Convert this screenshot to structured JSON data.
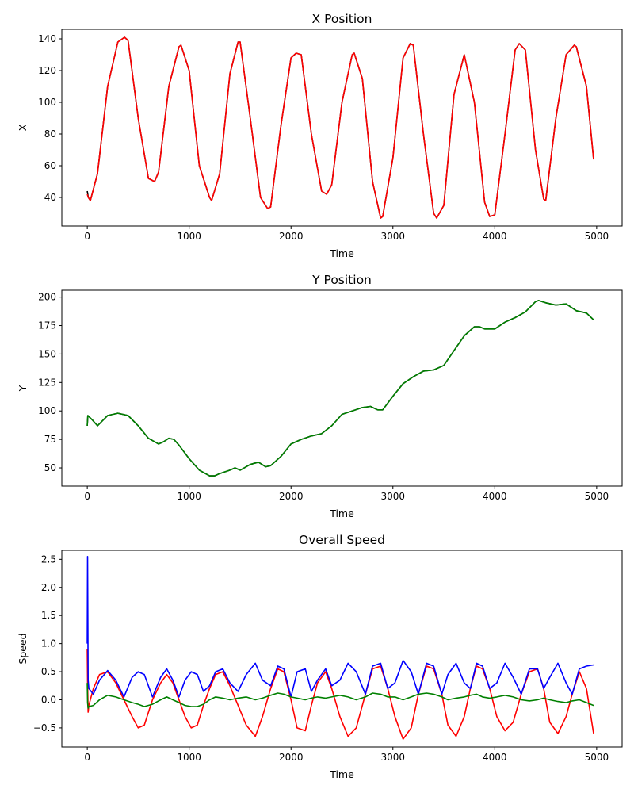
{
  "chart_data": [
    {
      "type": "line",
      "title": "X Position",
      "xlabel": "Time",
      "ylabel": "X",
      "xlim": [
        -250,
        5250
      ],
      "ylim": [
        22,
        146
      ],
      "xticks": [
        0,
        1000,
        2000,
        3000,
        4000,
        5000
      ],
      "yticks": [
        40,
        60,
        80,
        100,
        120,
        140
      ],
      "xtick_labels": [
        "0",
        "1000",
        "2000",
        "3000",
        "4000",
        "5000"
      ],
      "ytick_labels": [
        "40",
        "60",
        "80",
        "100",
        "120",
        "140"
      ],
      "grid": false,
      "series": [
        {
          "color": "#000000",
          "x": [
            0,
            10,
            30,
            100,
            200,
            300,
            365,
            400,
            500,
            600,
            660,
            700,
            800,
            900,
            920,
            1000,
            1100,
            1200,
            1220,
            1300,
            1400,
            1480,
            1500,
            1600,
            1700,
            1770,
            1800,
            1900,
            2000,
            2050,
            2100,
            2200,
            2300,
            2350,
            2400,
            2500,
            2600,
            2620,
            2700,
            2800,
            2880,
            2900,
            3000,
            3100,
            3170,
            3200,
            3300,
            3400,
            3430,
            3500,
            3600,
            3700,
            3800,
            3900,
            3950,
            4000,
            4100,
            4200,
            4240,
            4300,
            4400,
            4480,
            4500,
            4600,
            4700,
            4780,
            4800,
            4900,
            4970
          ],
          "y": [
            44,
            40,
            38,
            55,
            110,
            138,
            141,
            139,
            90,
            52,
            50,
            56,
            110,
            135,
            136,
            120,
            60,
            40,
            38,
            55,
            118,
            138,
            138,
            90,
            40,
            33,
            34,
            85,
            128,
            131,
            130,
            80,
            44,
            42,
            48,
            100,
            130,
            131,
            115,
            50,
            27,
            28,
            65,
            128,
            137,
            136,
            80,
            30,
            27,
            35,
            105,
            130,
            100,
            37,
            28,
            29,
            80,
            133,
            137,
            133,
            70,
            39,
            38,
            90,
            130,
            136,
            135,
            110,
            64
          ]
        },
        {
          "color": "#ff0000",
          "x": [
            0,
            10,
            30,
            100,
            200,
            300,
            365,
            400,
            500,
            600,
            660,
            700,
            800,
            900,
            920,
            1000,
            1100,
            1200,
            1220,
            1300,
            1400,
            1480,
            1500,
            1600,
            1700,
            1770,
            1800,
            1900,
            2000,
            2050,
            2100,
            2200,
            2300,
            2350,
            2400,
            2500,
            2600,
            2620,
            2700,
            2800,
            2880,
            2900,
            3000,
            3100,
            3170,
            3200,
            3300,
            3400,
            3430,
            3500,
            3600,
            3700,
            3800,
            3900,
            3950,
            4000,
            4100,
            4200,
            4240,
            4300,
            4400,
            4480,
            4500,
            4600,
            4700,
            4780,
            4800,
            4900,
            4970
          ],
          "y": [
            42,
            40,
            38,
            55,
            110,
            138,
            141,
            139,
            90,
            52,
            50,
            56,
            110,
            135,
            136,
            120,
            60,
            40,
            38,
            55,
            118,
            138,
            138,
            90,
            40,
            33,
            34,
            85,
            128,
            131,
            130,
            80,
            44,
            42,
            48,
            100,
            130,
            131,
            115,
            50,
            27,
            28,
            65,
            128,
            137,
            136,
            80,
            30,
            27,
            35,
            105,
            130,
            100,
            37,
            28,
            29,
            80,
            133,
            137,
            133,
            70,
            39,
            38,
            90,
            130,
            136,
            135,
            110,
            64
          ]
        }
      ]
    },
    {
      "type": "line",
      "title": "Y Position",
      "xlabel": "Time",
      "ylabel": "Y",
      "xlim": [
        -250,
        5250
      ],
      "ylim": [
        34,
        206
      ],
      "xticks": [
        0,
        1000,
        2000,
        3000,
        4000,
        5000
      ],
      "yticks": [
        50,
        75,
        100,
        125,
        150,
        175,
        200
      ],
      "xtick_labels": [
        "0",
        "1000",
        "2000",
        "3000",
        "4000",
        "5000"
      ],
      "ytick_labels": [
        "50",
        "75",
        "100",
        "125",
        "150",
        "175",
        "200"
      ],
      "grid": false,
      "series": [
        {
          "color": "#000000",
          "x": [
            0,
            5,
            50,
            100,
            200,
            300,
            400,
            500,
            600,
            700,
            750,
            800,
            850,
            900,
            1000,
            1100,
            1200,
            1250,
            1300,
            1400,
            1450,
            1500,
            1600,
            1680,
            1750,
            1800,
            1900,
            2000,
            2100,
            2200,
            2300,
            2400,
            2500,
            2600,
            2700,
            2780,
            2850,
            2900,
            3000,
            3100,
            3200,
            3300,
            3400,
            3500,
            3600,
            3700,
            3800,
            3850,
            3900,
            4000,
            4100,
            4200,
            4300,
            4400,
            4430,
            4500,
            4600,
            4700,
            4800,
            4900,
            4970
          ],
          "y": [
            87,
            96,
            92,
            87,
            96,
            98,
            96,
            87,
            76,
            71,
            73,
            76,
            75,
            70,
            58,
            48,
            43,
            43,
            45,
            48,
            50,
            48,
            53,
            55,
            51,
            52,
            60,
            71,
            75,
            78,
            80,
            87,
            97,
            100,
            103,
            104,
            101,
            101,
            113,
            124,
            130,
            135,
            136,
            140,
            153,
            166,
            174,
            174,
            172,
            172,
            178,
            182,
            187,
            196,
            197,
            195,
            193,
            194,
            188,
            186,
            180
          ]
        },
        {
          "color": "#008000",
          "x": [
            0,
            5,
            50,
            100,
            200,
            300,
            400,
            500,
            600,
            700,
            750,
            800,
            850,
            900,
            1000,
            1100,
            1200,
            1250,
            1300,
            1400,
            1450,
            1500,
            1600,
            1680,
            1750,
            1800,
            1900,
            2000,
            2100,
            2200,
            2300,
            2400,
            2500,
            2600,
            2700,
            2780,
            2850,
            2900,
            3000,
            3100,
            3200,
            3300,
            3400,
            3500,
            3600,
            3700,
            3800,
            3850,
            3900,
            4000,
            4100,
            4200,
            4300,
            4400,
            4430,
            4500,
            4600,
            4700,
            4800,
            4900,
            4970
          ],
          "y": [
            87,
            96,
            92,
            87,
            96,
            98,
            96,
            87,
            76,
            71,
            73,
            76,
            75,
            70,
            58,
            48,
            43,
            43,
            45,
            48,
            50,
            48,
            53,
            55,
            51,
            52,
            60,
            71,
            75,
            78,
            80,
            87,
            97,
            100,
            103,
            104,
            101,
            101,
            113,
            124,
            130,
            135,
            136,
            140,
            153,
            166,
            174,
            174,
            172,
            172,
            178,
            182,
            187,
            196,
            197,
            195,
            193,
            194,
            188,
            186,
            180
          ]
        }
      ]
    },
    {
      "type": "line",
      "title": "Overall Speed",
      "xlabel": "Time",
      "ylabel": "Speed",
      "xlim": [
        -250,
        5250
      ],
      "ylim": [
        -0.84,
        2.66
      ],
      "xticks": [
        0,
        1000,
        2000,
        3000,
        4000,
        5000
      ],
      "yticks": [
        -0.5,
        0.0,
        0.5,
        1.0,
        1.5,
        2.0,
        2.5
      ],
      "xtick_labels": [
        "0",
        "1000",
        "2000",
        "3000",
        "4000",
        "5000"
      ],
      "ytick_labels": [
        "−0.5",
        "0.0",
        "0.5",
        "1.0",
        "1.5",
        "2.0",
        "2.5"
      ],
      "grid": false,
      "series": [
        {
          "color": "#ff0000",
          "x": [
            0,
            3,
            8,
            15,
            60,
            120,
            200,
            280,
            360,
            440,
            500,
            560,
            640,
            720,
            780,
            840,
            900,
            960,
            1020,
            1080,
            1140,
            1200,
            1260,
            1330,
            1400,
            1480,
            1560,
            1650,
            1720,
            1800,
            1870,
            1930,
            2000,
            2060,
            2140,
            2200,
            2260,
            2340,
            2400,
            2480,
            2560,
            2640,
            2730,
            2800,
            2880,
            2950,
            3020,
            3100,
            3180,
            3250,
            3330,
            3400,
            3480,
            3540,
            3620,
            3700,
            3760,
            3820,
            3880,
            3950,
            4020,
            4100,
            4180,
            4260,
            4340,
            4420,
            4480,
            4540,
            4620,
            4700,
            4760,
            4830,
            4900,
            4970
          ],
          "y": [
            0.9,
            0.3,
            -0.22,
            -0.1,
            0.2,
            0.45,
            0.5,
            0.3,
            0.0,
            -0.3,
            -0.5,
            -0.45,
            0.0,
            0.3,
            0.45,
            0.3,
            0.0,
            -0.3,
            -0.5,
            -0.45,
            -0.1,
            0.2,
            0.45,
            0.5,
            0.25,
            -0.1,
            -0.45,
            -0.65,
            -0.3,
            0.2,
            0.55,
            0.5,
            0.0,
            -0.5,
            -0.55,
            -0.1,
            0.3,
            0.5,
            0.2,
            -0.3,
            -0.65,
            -0.5,
            0.1,
            0.55,
            0.6,
            0.2,
            -0.3,
            -0.7,
            -0.5,
            0.1,
            0.6,
            0.55,
            0.1,
            -0.45,
            -0.65,
            -0.3,
            0.2,
            0.6,
            0.55,
            0.2,
            -0.3,
            -0.55,
            -0.4,
            0.1,
            0.5,
            0.55,
            0.2,
            -0.4,
            -0.6,
            -0.3,
            0.1,
            0.5,
            0.2,
            -0.6
          ]
        },
        {
          "color": "#0000ff",
          "x": [
            0,
            3,
            8,
            15,
            60,
            120,
            200,
            280,
            360,
            440,
            500,
            560,
            640,
            720,
            780,
            840,
            900,
            960,
            1020,
            1080,
            1140,
            1200,
            1260,
            1330,
            1400,
            1480,
            1560,
            1650,
            1720,
            1800,
            1870,
            1930,
            2000,
            2060,
            2140,
            2200,
            2260,
            2340,
            2400,
            2480,
            2560,
            2640,
            2730,
            2800,
            2880,
            2950,
            3020,
            3100,
            3180,
            3250,
            3330,
            3400,
            3480,
            3540,
            3620,
            3700,
            3760,
            3820,
            3880,
            3950,
            4020,
            4100,
            4180,
            4260,
            4340,
            4420,
            4480,
            4540,
            4620,
            4700,
            4760,
            4830,
            4900,
            4970
          ],
          "y": [
            1.0,
            2.55,
            0.35,
            0.2,
            0.1,
            0.35,
            0.52,
            0.35,
            0.05,
            0.4,
            0.5,
            0.45,
            0.05,
            0.4,
            0.55,
            0.35,
            0.05,
            0.35,
            0.5,
            0.45,
            0.15,
            0.25,
            0.5,
            0.55,
            0.3,
            0.15,
            0.45,
            0.65,
            0.35,
            0.25,
            0.6,
            0.55,
            0.05,
            0.5,
            0.55,
            0.15,
            0.35,
            0.55,
            0.25,
            0.35,
            0.65,
            0.5,
            0.1,
            0.6,
            0.65,
            0.2,
            0.3,
            0.7,
            0.5,
            0.1,
            0.65,
            0.6,
            0.1,
            0.45,
            0.65,
            0.3,
            0.2,
            0.65,
            0.6,
            0.2,
            0.3,
            0.65,
            0.4,
            0.1,
            0.55,
            0.55,
            0.2,
            0.4,
            0.65,
            0.3,
            0.1,
            0.55,
            0.6,
            0.62
          ]
        },
        {
          "color": "#008000",
          "x": [
            0,
            3,
            8,
            15,
            60,
            120,
            200,
            280,
            360,
            440,
            500,
            560,
            640,
            720,
            780,
            840,
            900,
            960,
            1020,
            1080,
            1140,
            1200,
            1260,
            1330,
            1400,
            1480,
            1560,
            1650,
            1720,
            1800,
            1870,
            1930,
            2000,
            2060,
            2140,
            2200,
            2260,
            2340,
            2400,
            2480,
            2560,
            2640,
            2730,
            2800,
            2880,
            2950,
            3020,
            3100,
            3180,
            3250,
            3330,
            3400,
            3480,
            3540,
            3620,
            3700,
            3760,
            3820,
            3880,
            3950,
            4020,
            4100,
            4180,
            4260,
            4340,
            4420,
            4480,
            4540,
            4620,
            4700,
            4760,
            4830,
            4900,
            4970
          ],
          "y": [
            0.3,
            -0.05,
            -0.15,
            -0.12,
            -0.1,
            0.0,
            0.08,
            0.05,
            0.0,
            -0.05,
            -0.08,
            -0.12,
            -0.08,
            0.0,
            0.05,
            0.0,
            -0.05,
            -0.1,
            -0.12,
            -0.12,
            -0.08,
            0.0,
            0.05,
            0.03,
            0.0,
            0.03,
            0.05,
            0.0,
            0.03,
            0.08,
            0.12,
            0.1,
            0.05,
            0.03,
            0.0,
            0.03,
            0.05,
            0.03,
            0.05,
            0.08,
            0.05,
            0.0,
            0.05,
            0.12,
            0.1,
            0.05,
            0.05,
            0.0,
            0.05,
            0.1,
            0.12,
            0.1,
            0.05,
            0.0,
            0.03,
            0.05,
            0.08,
            0.1,
            0.05,
            0.03,
            0.05,
            0.08,
            0.05,
            0.0,
            -0.02,
            0.0,
            0.03,
            0.0,
            -0.03,
            -0.05,
            -0.02,
            0.0,
            -0.05,
            -0.1
          ]
        }
      ]
    }
  ]
}
